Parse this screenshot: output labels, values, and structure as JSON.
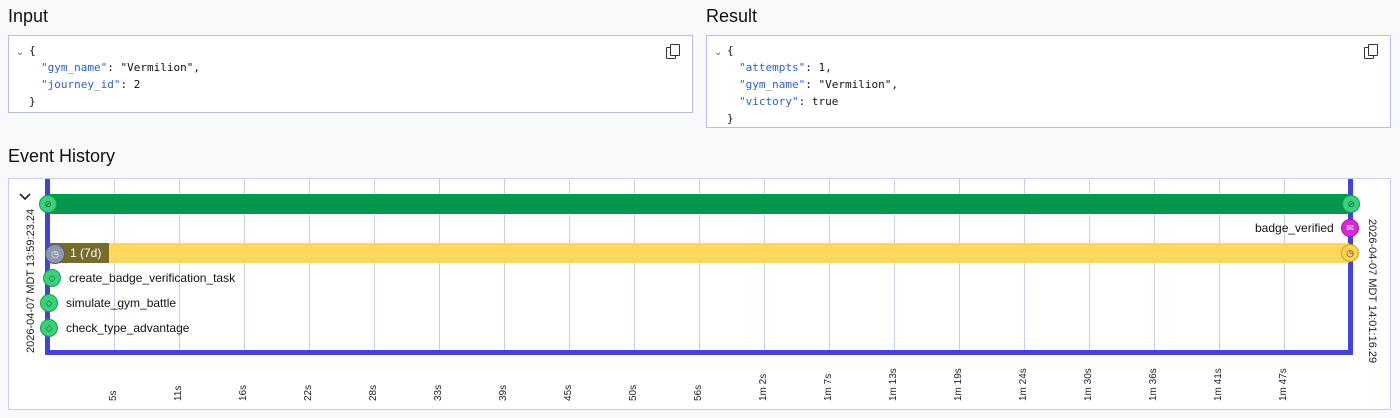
{
  "input": {
    "title": "Input",
    "json_lines": [
      {
        "indent": 0,
        "text": "{"
      },
      {
        "indent": 1,
        "key": "\"gym_name\"",
        "value": "\"Vermilion\","
      },
      {
        "indent": 1,
        "key": "\"journey_id\"",
        "value": "2"
      },
      {
        "indent": 0,
        "text": "}"
      }
    ]
  },
  "result": {
    "title": "Result",
    "json_lines": [
      {
        "indent": 0,
        "text": "{"
      },
      {
        "indent": 1,
        "key": "\"attempts\"",
        "value": "1,"
      },
      {
        "indent": 1,
        "key": "\"gym_name\"",
        "value": "\"Vermilion\","
      },
      {
        "indent": 1,
        "key": "\"victory\"",
        "value": "true"
      },
      {
        "indent": 0,
        "text": "}"
      }
    ]
  },
  "event_history": {
    "title": "Event History",
    "start_time": "2026-04-07 MDT 13:59:23.24",
    "end_time": "2026-04-07 MDT 14:01:16.29",
    "ticks": [
      "5s",
      "11s",
      "16s",
      "22s",
      "28s",
      "33s",
      "39s",
      "45s",
      "50s",
      "56s",
      "1m 2s",
      "1m 7s",
      "1m 13s",
      "1m 19s",
      "1m 24s",
      "1m 30s",
      "1m 36s",
      "1m 41s",
      "1m 47s"
    ],
    "timer_label": "1 (7d)",
    "signal_label": "badge_verified",
    "activities": [
      "create_badge_verification_task",
      "simulate_gym_battle",
      "check_type_advantage"
    ],
    "colors": {
      "workflow_bar": "#03984d",
      "timer_bar": "#ffd75a",
      "timer_fill": "#766b2b",
      "axis": "#4343d8"
    },
    "icons": {
      "workflow": "workflow-icon",
      "timer": "timer-icon",
      "signal": "signal-icon",
      "activity": "activity-icon"
    }
  }
}
